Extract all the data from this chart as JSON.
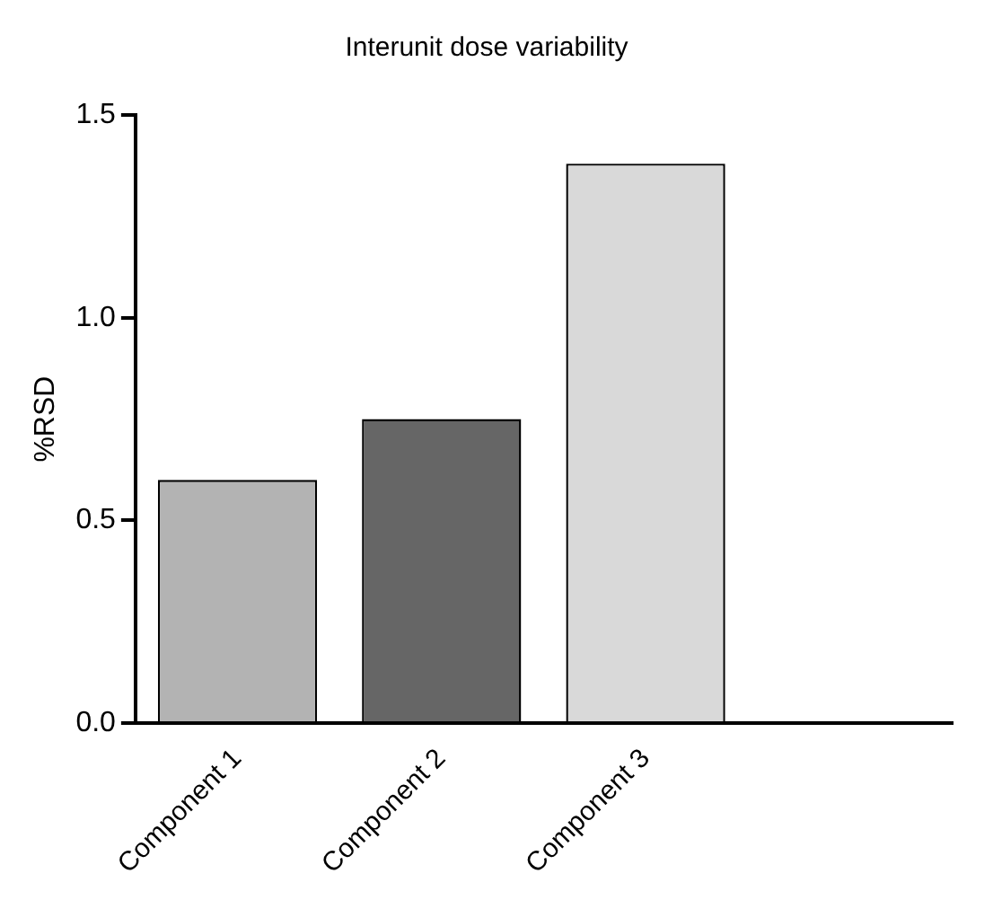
{
  "chart_data": {
    "type": "bar",
    "title": "Interunit dose variability",
    "ylabel": "%RSD",
    "categories": [
      "Component 1",
      "Component 2",
      "Component 3",
      null
    ],
    "values": [
      0.6,
      0.75,
      1.38,
      null
    ],
    "colors": [
      "#b3b3b3",
      "#666666",
      "#d9d9d9",
      "#cccccc"
    ],
    "ylim": [
      0,
      1.5
    ],
    "yticks": [
      {
        "value": 0,
        "label": "0.0"
      },
      0.5,
      {
        "value": 1,
        "label": "1.0"
      },
      1.5
    ],
    "grid": false,
    "legend": false
  }
}
